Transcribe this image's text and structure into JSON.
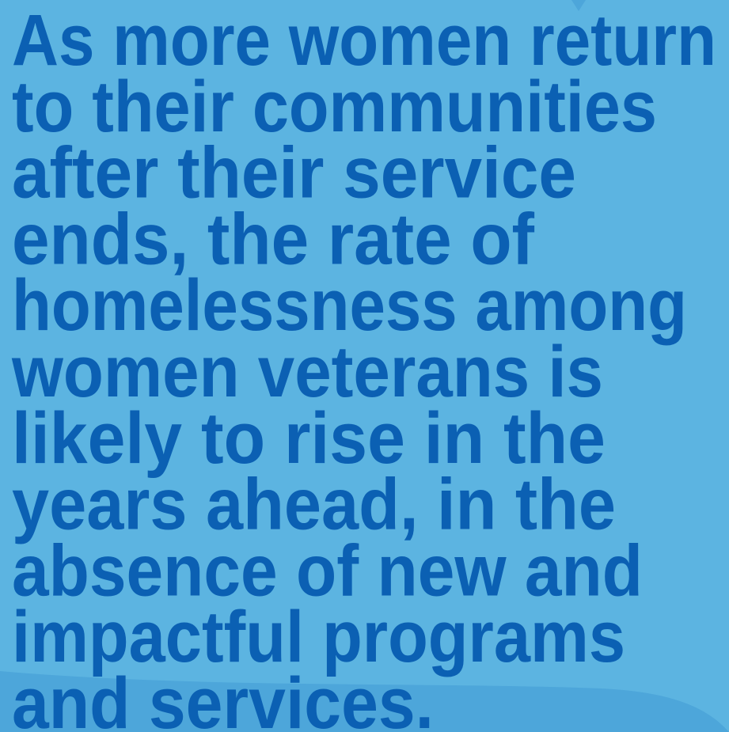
{
  "quote": {
    "lines": [
      "As more women return",
      "to their communities",
      "after their service",
      "ends, the rate of",
      "homelessness among",
      "women veterans is",
      "likely to rise in the",
      "years ahead, in the",
      "absence of new and",
      "impactful programs",
      "and services."
    ]
  }
}
